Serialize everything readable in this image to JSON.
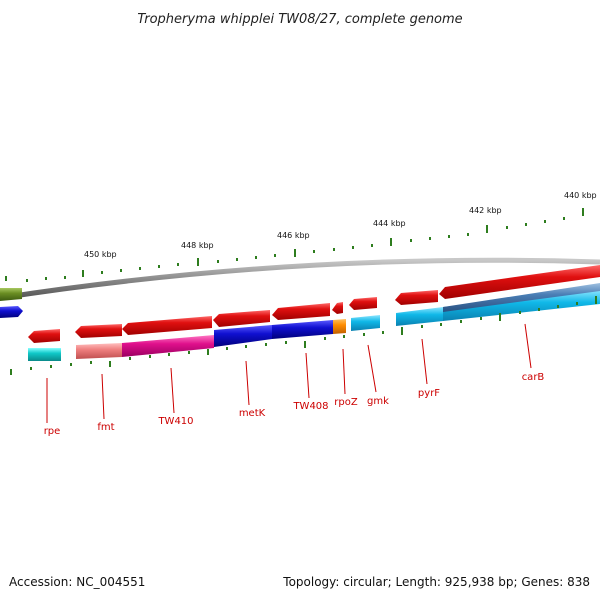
{
  "title": "Tropheryma whipplei TW08/27, complete genome",
  "footer": {
    "accession": "Accession: NC_004551",
    "summary": "Topology: circular; Length: 925,938 bp; Genes: 838"
  },
  "scale_labels": [
    "450 kbp",
    "448 kbp",
    "446 kbp",
    "444 kbp",
    "442 kbp",
    "440 kbp"
  ],
  "gene_labels": [
    "rpe",
    "fmt",
    "TW410",
    "metK",
    "TW408",
    "rpoZ",
    "gmk",
    "pyrF",
    "carB"
  ],
  "colors": {
    "label_red": "#cc0000",
    "backbone": "#8a8a8a",
    "tick_green": "#2e7d1e",
    "gene_red": "#e01010",
    "gene_blue": "#1010d0",
    "gene_cyan": "#10b8e8",
    "gene_teal": "#10c8c8",
    "gene_magenta": "#e0108c",
    "gene_orange": "#ff8c00",
    "gene_salmon": "#f08080",
    "gene_olive": "#6b8e23",
    "gene_steel": "#4a7eb5"
  }
}
